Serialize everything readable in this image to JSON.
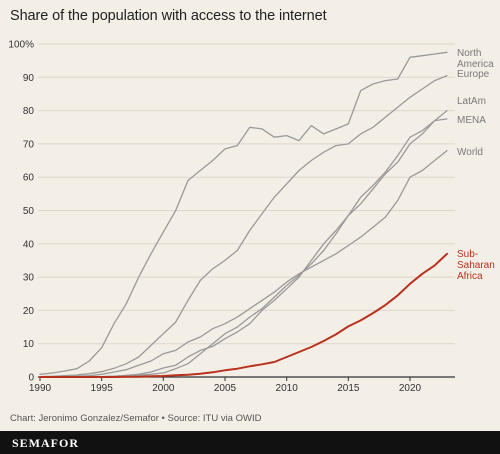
{
  "colors": {
    "background": "#f3eee6",
    "line_default": "#9a9a9a",
    "line_highlight": "#b8321e",
    "label_default": "#7a7a7a",
    "grid": "#ddd6cb",
    "axis": "#333333",
    "footer_bg": "#111111"
  },
  "credit": "Chart: Jeronimo Gonzalez/Semafor • Source: ITU via OWID",
  "brand": "SEMAFOR",
  "chart_data": {
    "type": "line",
    "title": "Share of the population with access to the internet",
    "xlabel": "",
    "ylabel": "",
    "xlim": [
      1990,
      2023
    ],
    "ylim": [
      0,
      100
    ],
    "grid": true,
    "legend": "direct labels at right end of lines",
    "x_ticks": [
      "1990",
      "1995",
      "2000",
      "2005",
      "2010",
      "2015",
      "2020"
    ],
    "y_ticks": [
      "0",
      "10",
      "20",
      "30",
      "40",
      "50",
      "60",
      "70",
      "80",
      "90",
      "100%"
    ],
    "x": [
      1990,
      1991,
      1992,
      1993,
      1994,
      1995,
      1996,
      1997,
      1998,
      1999,
      2000,
      2001,
      2002,
      2003,
      2004,
      2005,
      2006,
      2007,
      2008,
      2009,
      2010,
      2011,
      2012,
      2013,
      2014,
      2015,
      2016,
      2017,
      2018,
      2019,
      2020,
      2021,
      2022,
      2023
    ],
    "series": [
      {
        "name": "North America",
        "label_lines": [
          "North",
          "America"
        ],
        "highlight": false,
        "values": [
          0.8,
          1.2,
          1.8,
          2.5,
          4.8,
          8.8,
          16,
          22,
          30,
          37,
          43.5,
          50,
          59,
          62,
          65,
          68.5,
          69.5,
          75,
          74.5,
          72,
          72.5,
          71,
          75.5,
          73,
          74.5,
          76,
          86,
          88,
          89,
          89.5,
          96,
          96.5,
          97,
          97.5
        ]
      },
      {
        "name": "Europe",
        "label_lines": [
          "Europe"
        ],
        "highlight": false,
        "values": [
          0.1,
          0.2,
          0.4,
          0.6,
          1.0,
          1.6,
          2.6,
          4.0,
          6.0,
          9.5,
          13,
          16.5,
          23,
          29,
          32.5,
          35,
          38,
          44,
          49,
          54,
          58,
          62,
          65,
          67.5,
          69.5,
          70,
          73,
          75,
          78,
          81,
          84,
          86.5,
          89,
          90.5
        ]
      },
      {
        "name": "LatAm",
        "label_lines": [
          "LatAm"
        ],
        "highlight": false,
        "values": [
          0,
          0,
          0,
          0,
          0.1,
          0.1,
          0.2,
          0.5,
          0.8,
          1.5,
          2.7,
          3.5,
          6,
          8,
          9.2,
          11.5,
          13.5,
          16,
          20,
          23,
          26.5,
          30,
          35,
          40,
          44,
          48.5,
          52,
          56.5,
          61,
          64.5,
          70,
          73,
          77,
          80
        ]
      },
      {
        "name": "MENA",
        "label_lines": [
          "MENA"
        ],
        "highlight": false,
        "values": [
          0,
          0,
          0,
          0,
          0,
          0.1,
          0.2,
          0.3,
          0.5,
          0.8,
          1.2,
          2.5,
          4,
          7,
          10,
          13,
          15,
          18,
          20.5,
          24,
          27.5,
          30.5,
          34,
          38,
          43,
          48.5,
          54,
          57.5,
          61.5,
          66.5,
          72,
          74,
          77,
          77.5
        ]
      },
      {
        "name": "World",
        "label_lines": [
          "World"
        ],
        "highlight": false,
        "values": [
          0,
          0,
          0.1,
          0.2,
          0.4,
          0.8,
          1.5,
          2.2,
          3.5,
          4.8,
          7,
          8,
          10.5,
          12,
          14.5,
          16,
          18,
          20.5,
          23,
          25.5,
          28.5,
          31,
          33,
          35,
          37,
          39.5,
          42,
          45,
          48,
          53,
          60,
          62,
          65,
          68
        ]
      },
      {
        "name": "Sub-Saharan Africa",
        "label_lines": [
          "Sub-",
          "Saharan",
          "Africa"
        ],
        "highlight": true,
        "values": [
          0,
          0,
          0,
          0,
          0,
          0,
          0,
          0.1,
          0.1,
          0.2,
          0.3,
          0.5,
          0.7,
          1.0,
          1.4,
          2.0,
          2.5,
          3.2,
          3.8,
          4.5,
          6.0,
          7.5,
          9.0,
          10.8,
          12.8,
          15.2,
          17.0,
          19.2,
          21.6,
          24.5,
          28,
          31,
          33.5,
          37
        ]
      }
    ]
  }
}
